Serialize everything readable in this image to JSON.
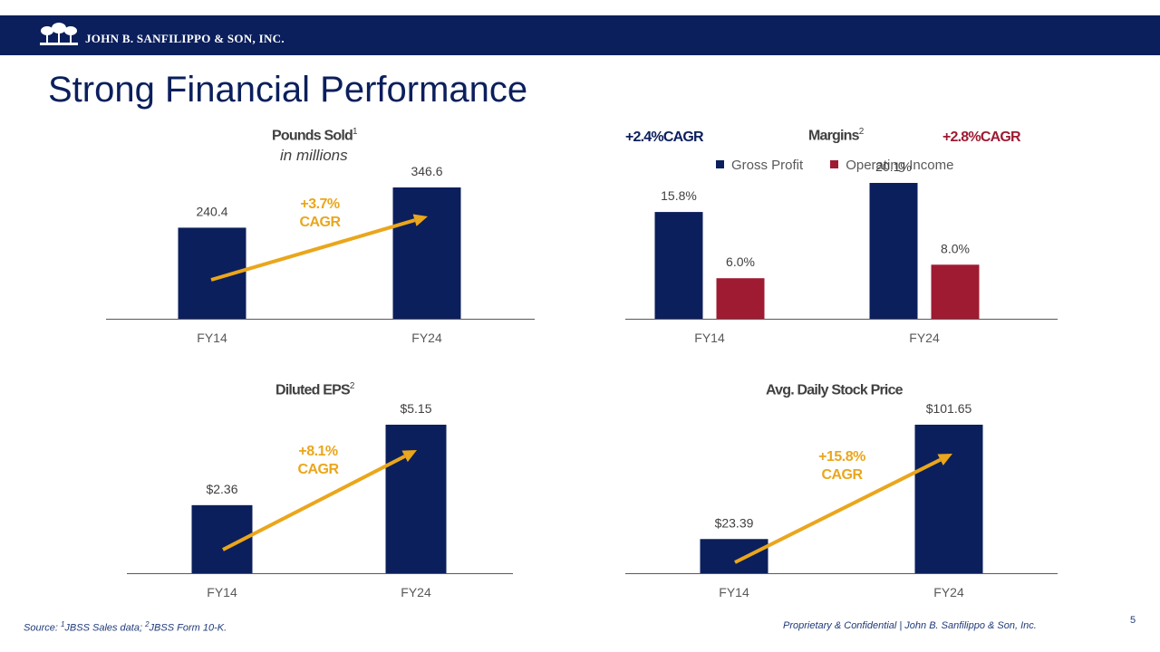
{
  "header": {
    "company": "JOHN B. SANFILIPPO & SON, INC."
  },
  "title": "Strong Financial Performance",
  "colors": {
    "navy": "#0b1f5c",
    "crimson": "#9e1b32",
    "gold": "#eaa61c",
    "axis": "#595959"
  },
  "chart_data": [
    {
      "id": "pounds",
      "type": "bar",
      "title": "Pounds Sold",
      "title_sup": "1",
      "subtitle": "in millions",
      "categories": [
        "FY14",
        "FY24"
      ],
      "series": [
        {
          "name": "Pounds Sold",
          "values": [
            240.4,
            346.6
          ],
          "labels": [
            "240.4",
            "346.6"
          ]
        }
      ],
      "ylim": [
        0,
        400
      ],
      "annotation": {
        "line1": "+3.7%",
        "line2": "CAGR"
      }
    },
    {
      "id": "margins",
      "type": "bar",
      "title": "Margins",
      "title_sup": "2",
      "categories": [
        "FY14",
        "FY24"
      ],
      "series": [
        {
          "name": "Gross Profit",
          "values": [
            15.8,
            20.1
          ],
          "labels": [
            "15.8%",
            "20.1%"
          ],
          "cagr": "+2.4%CAGR"
        },
        {
          "name": "Operating Income",
          "values": [
            6.0,
            8.0
          ],
          "labels": [
            "6.0%",
            "8.0%"
          ],
          "cagr": "+2.8%CAGR"
        }
      ],
      "ylim": [
        0,
        25
      ],
      "legend": [
        "Gross Profit",
        "Operating Income"
      ]
    },
    {
      "id": "eps",
      "type": "bar",
      "title": "Diluted EPS",
      "title_sup": "2",
      "categories": [
        "FY14",
        "FY24"
      ],
      "series": [
        {
          "name": "Diluted EPS",
          "values": [
            2.36,
            5.15
          ],
          "labels": [
            "$2.36",
            "$5.15"
          ]
        }
      ],
      "ylim": [
        0,
        6
      ],
      "annotation": {
        "line1": "+8.1%",
        "line2": "CAGR"
      }
    },
    {
      "id": "stock",
      "type": "bar",
      "title": "Avg. Daily Stock Price",
      "title_sup": "",
      "categories": [
        "FY14",
        "FY24"
      ],
      "series": [
        {
          "name": "Avg. Daily Stock Price",
          "values": [
            23.39,
            101.65
          ],
          "labels": [
            "$23.39",
            "$101.65"
          ]
        }
      ],
      "ylim": [
        0,
        115
      ],
      "annotation": {
        "line1": "+15.8%",
        "line2": "CAGR"
      }
    }
  ],
  "footer": {
    "source_prefix": "Source: ",
    "sup1": "1",
    "source1": "JBSS Sales data; ",
    "sup2": "2",
    "source2": "JBSS Form 10-K.",
    "confidential": "Proprietary & Confidential | John B. Sanfilippo & Son, Inc.",
    "page": "5"
  }
}
